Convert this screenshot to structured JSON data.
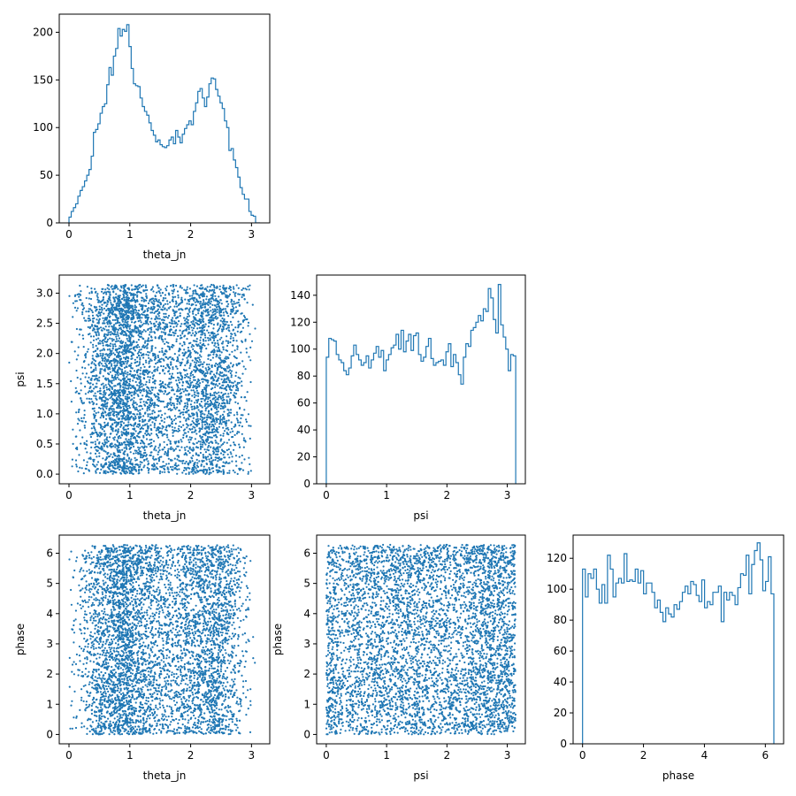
{
  "figure": {
    "type": "corner plot",
    "color": "#1f77b4",
    "axis_color": "#000000",
    "marker": "small dots",
    "background": "#ffffff"
  },
  "chart_data": [
    {
      "type": "histogram",
      "variable": "theta_jn",
      "xlabel": "theta_jn",
      "ylabel": "",
      "xlim": [
        -0.16,
        3.3
      ],
      "ylim": [
        0,
        219
      ],
      "xticks": [
        0,
        1,
        2,
        3
      ],
      "yticks": [
        0,
        50,
        100,
        150,
        200
      ],
      "binned": true,
      "bin_range": [
        0,
        3.14
      ],
      "counts": [
        6,
        12,
        16,
        20,
        28,
        34,
        38,
        44,
        50,
        56,
        70,
        95,
        98,
        104,
        115,
        122,
        125,
        145,
        163,
        155,
        175,
        183,
        204,
        196,
        203,
        201,
        208,
        185,
        162,
        146,
        144,
        143,
        131,
        122,
        117,
        113,
        105,
        97,
        92,
        85,
        87,
        82,
        80,
        79,
        81,
        87,
        90,
        83,
        97,
        90,
        84,
        93,
        99,
        103,
        107,
        103,
        117,
        126,
        138,
        141,
        131,
        122,
        132,
        146,
        152,
        151,
        140,
        133,
        126,
        120,
        107,
        100,
        76,
        78,
        66,
        58,
        48,
        37,
        30,
        25,
        25,
        12,
        8,
        7,
        0,
        0
      ]
    },
    {
      "type": "scatter",
      "x_variable": "theta_jn",
      "y_variable": "psi",
      "xlabel": "theta_jn",
      "ylabel": "psi",
      "xlim": [
        -0.16,
        3.3
      ],
      "ylim": [
        -0.16,
        3.3
      ],
      "xticks": [
        0,
        1,
        2,
        3
      ],
      "yticks": [
        0.0,
        0.5,
        1.0,
        1.5,
        2.0,
        2.5,
        3.0
      ],
      "points_drawn": 5000
    },
    {
      "type": "histogram",
      "variable": "psi",
      "xlabel": "psi",
      "ylabel": "",
      "xlim": [
        -0.16,
        3.3
      ],
      "ylim": [
        0,
        155
      ],
      "xticks": [
        0,
        1,
        2,
        3
      ],
      "yticks": [
        0,
        20,
        40,
        60,
        80,
        100,
        120,
        140
      ],
      "binned": true,
      "bin_range": [
        0,
        3.14
      ],
      "counts": [
        94,
        108,
        107,
        106,
        96,
        92,
        90,
        84,
        81,
        86,
        95,
        103,
        96,
        92,
        88,
        90,
        95,
        86,
        92,
        97,
        102,
        94,
        99,
        84,
        92,
        96,
        101,
        103,
        111,
        100,
        114,
        98,
        106,
        111,
        99,
        110,
        112,
        96,
        91,
        94,
        102,
        108,
        93,
        88,
        90,
        91,
        92,
        88,
        98,
        104,
        87,
        96,
        90,
        81,
        74,
        94,
        104,
        102,
        114,
        116,
        120,
        125,
        121,
        130,
        128,
        145,
        138,
        122,
        112,
        148,
        118,
        109,
        100,
        84,
        96,
        95
      ]
    },
    {
      "type": "scatter",
      "x_variable": "theta_jn",
      "y_variable": "phase",
      "xlabel": "theta_jn",
      "ylabel": "phase",
      "xlim": [
        -0.16,
        3.3
      ],
      "ylim": [
        -0.31,
        6.6
      ],
      "xticks": [
        0,
        1,
        2,
        3
      ],
      "yticks": [
        0,
        1,
        2,
        3,
        4,
        5,
        6
      ],
      "points_drawn": 5000
    },
    {
      "type": "scatter",
      "x_variable": "psi",
      "y_variable": "phase",
      "xlabel": "psi",
      "ylabel": "phase",
      "xlim": [
        -0.16,
        3.3
      ],
      "ylim": [
        -0.31,
        6.6
      ],
      "xticks": [
        0,
        1,
        2,
        3
      ],
      "yticks": [
        0,
        1,
        2,
        3,
        4,
        5,
        6
      ],
      "points_drawn": 5000
    },
    {
      "type": "histogram",
      "variable": "phase",
      "xlabel": "phase",
      "ylabel": "",
      "xlim": [
        -0.31,
        6.6
      ],
      "ylim": [
        0,
        135
      ],
      "xticks": [
        0,
        2,
        4,
        6
      ],
      "yticks": [
        0,
        20,
        40,
        60,
        80,
        100,
        120
      ],
      "binned": true,
      "bin_range": [
        0,
        6.28
      ],
      "counts": [
        113,
        95,
        110,
        107,
        113,
        100,
        91,
        103,
        91,
        122,
        113,
        95,
        104,
        107,
        104,
        123,
        105,
        106,
        105,
        113,
        104,
        112,
        97,
        104,
        104,
        98,
        88,
        93,
        85,
        79,
        88,
        84,
        82,
        90,
        87,
        92,
        98,
        102,
        97,
        105,
        103,
        96,
        92,
        106,
        88,
        92,
        90,
        98,
        98,
        102,
        79,
        98,
        93,
        98,
        96,
        90,
        101,
        110,
        109,
        122,
        97,
        116,
        125,
        130,
        119,
        99,
        105,
        121,
        97
      ]
    }
  ]
}
